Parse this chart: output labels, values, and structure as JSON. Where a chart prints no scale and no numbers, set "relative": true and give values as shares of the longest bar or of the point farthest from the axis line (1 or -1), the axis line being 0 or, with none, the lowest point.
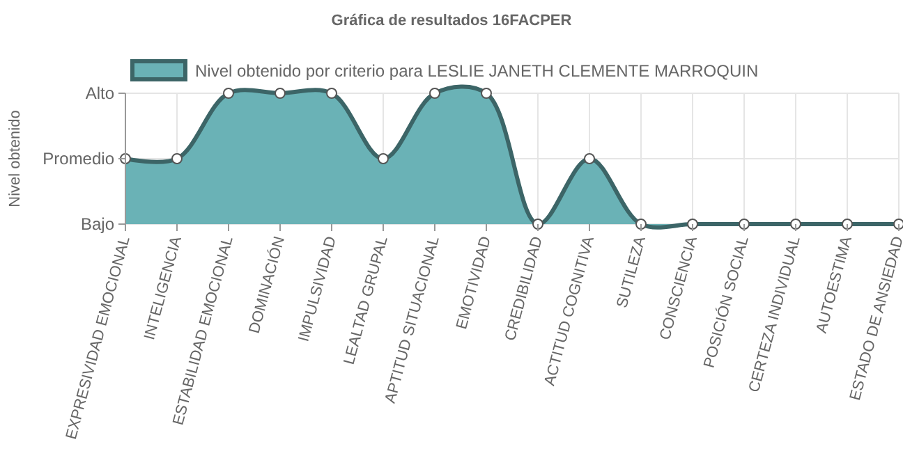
{
  "chart_data": {
    "type": "area",
    "title": "Gráfica de resultados 16FACPER",
    "ylabel": "Nivel obtenido",
    "categories": [
      "EXPRESIVIDAD EMOCIONAL",
      "INTELIGENCIA",
      "ESTABILIDAD EMOCIONAL",
      "DOMINACIÓN",
      "IMPULSIVIDAD",
      "LEALTAD GRUPAL",
      "APTITUD SITUACIONAL",
      "EMOTIVIDAD",
      "CREDIBILIDAD",
      "ACTITUD COGNITIVA",
      "SUTILEZA",
      "CONSCIENCIA",
      "POSICIÓN SOCIAL",
      "CERTEZA INDIVIDUAL",
      "AUTOESTIMA",
      "ESTADO DE ANSIEDAD"
    ],
    "series": [
      {
        "name": "Nivel obtenido por criterio para LESLIE JANETH CLEMENTE MARROQUIN",
        "color": "#6ab2b6",
        "values": [
          0.5,
          0.5,
          1,
          1,
          1,
          0.5,
          1,
          1,
          0,
          0.5,
          0,
          0,
          0,
          0,
          0,
          0
        ]
      }
    ],
    "relative": true,
    "annotations": [
      "Bajo",
      "Promedio",
      "Alto"
    ],
    "grid": true,
    "legend": "top",
    "marker": "circle",
    "line_style": "solid"
  }
}
